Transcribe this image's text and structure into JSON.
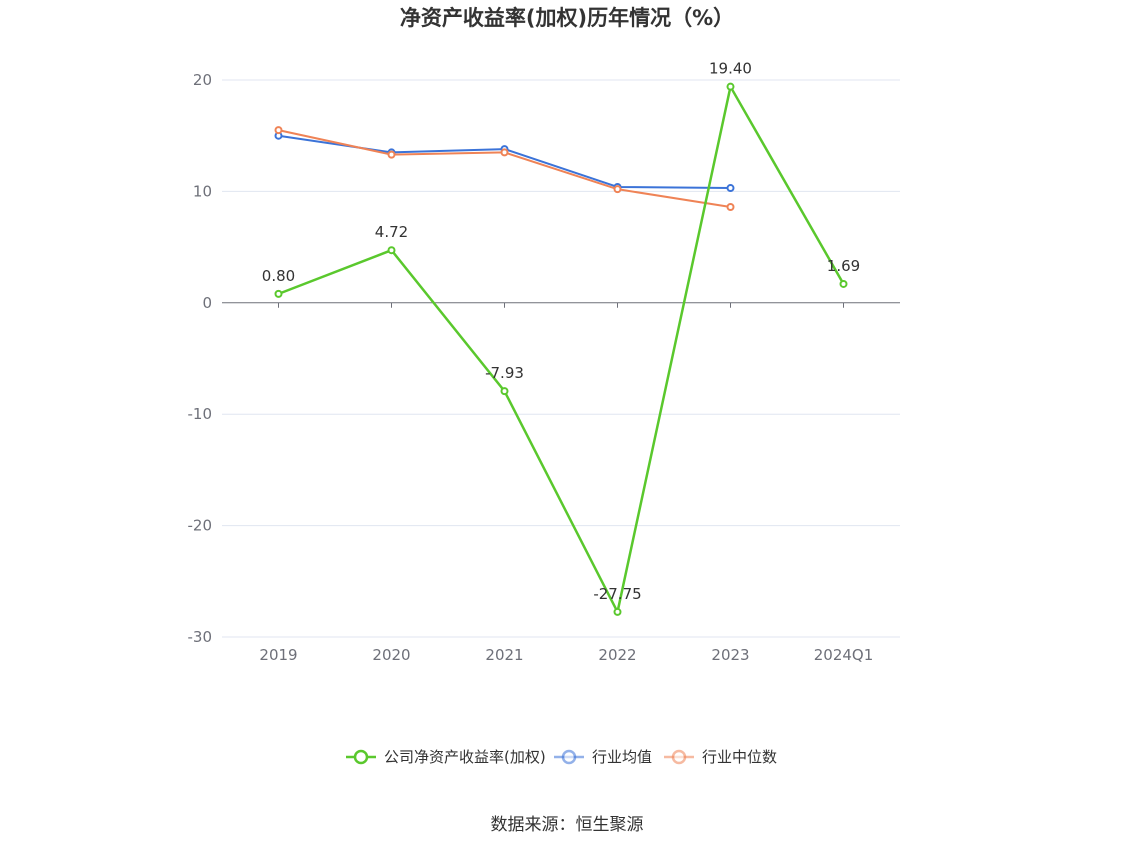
{
  "chart_data": {
    "type": "line",
    "title": "净资产收益率(加权)历年情况（%）",
    "categories": [
      "2019",
      "2020",
      "2021",
      "2022",
      "2023",
      "2024Q1"
    ],
    "series": [
      {
        "name": "公司净资产收益率(加权)",
        "color": "#5ac82d",
        "values": [
          0.8,
          4.72,
          -7.93,
          -27.75,
          19.4,
          1.69
        ],
        "labels": [
          "0.80",
          "4.72",
          "-7.93",
          "-27.75",
          "19.40",
          "1.69"
        ]
      },
      {
        "name": "行业均值",
        "color": "#3b73d8",
        "values": [
          15.0,
          13.5,
          13.8,
          10.4,
          10.3,
          null
        ]
      },
      {
        "name": "行业中位数",
        "color": "#ef8356",
        "values": [
          15.5,
          13.3,
          13.5,
          10.2,
          8.6,
          null
        ]
      }
    ],
    "yticks": [
      "20",
      "10",
      "0",
      "-10",
      "-20",
      "-30"
    ],
    "ytick_values": [
      20,
      10,
      0,
      -10,
      -20,
      -30
    ],
    "ylim": [
      -30,
      20
    ],
    "grid": true,
    "legend_position": "bottom"
  },
  "source": "数据来源：恒生聚源"
}
